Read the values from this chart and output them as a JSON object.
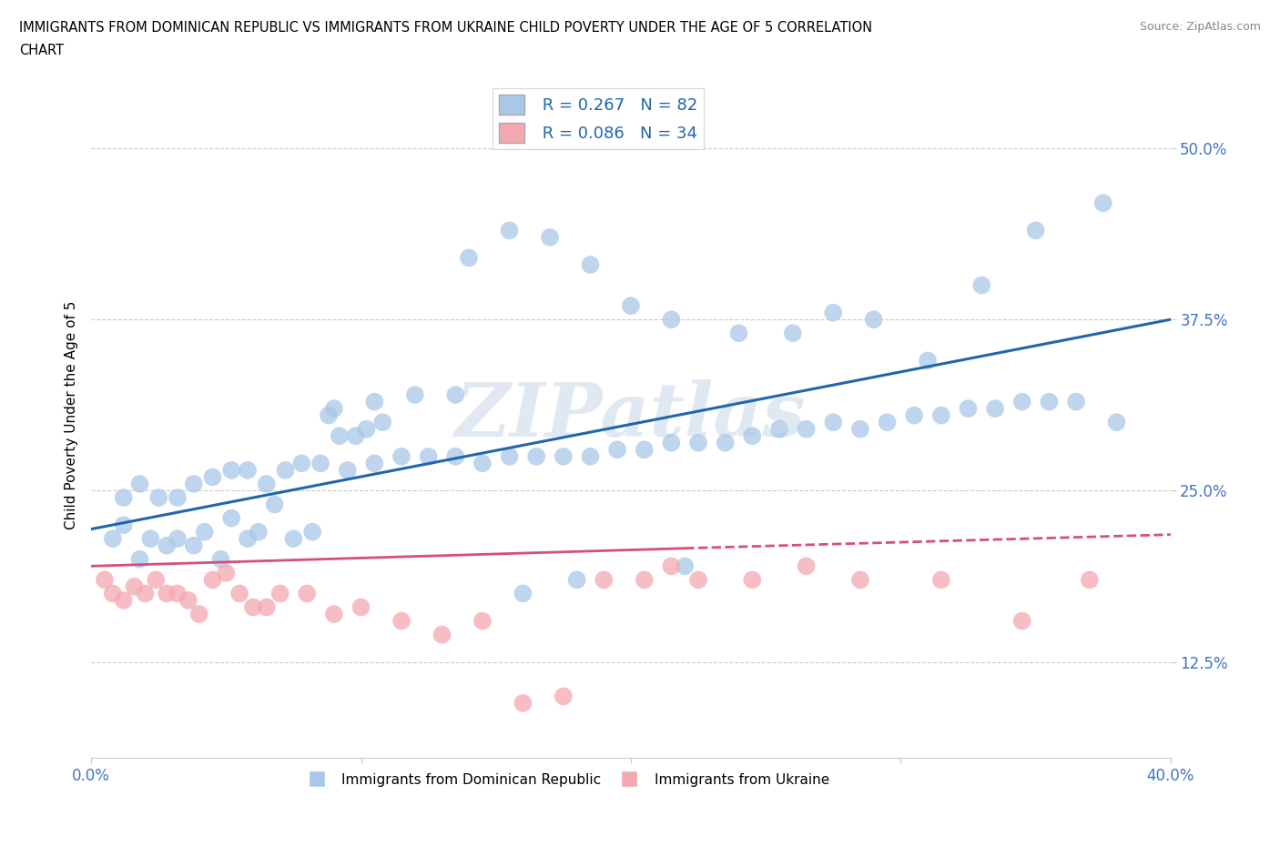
{
  "title_line1": "IMMIGRANTS FROM DOMINICAN REPUBLIC VS IMMIGRANTS FROM UKRAINE CHILD POVERTY UNDER THE AGE OF 5 CORRELATION",
  "title_line2": "CHART",
  "source": "Source: ZipAtlas.com",
  "ylabel": "Child Poverty Under the Age of 5",
  "xlim": [
    0.0,
    0.4
  ],
  "ylim": [
    0.055,
    0.555
  ],
  "yticks": [
    0.125,
    0.25,
    0.375,
    0.5
  ],
  "ytick_labels": [
    "12.5%",
    "25.0%",
    "37.5%",
    "50.0%"
  ],
  "xticks": [
    0.0,
    0.1,
    0.2,
    0.3,
    0.4
  ],
  "xtick_labels": [
    "0.0%",
    "",
    "",
    "",
    "40.0%"
  ],
  "legend_label1": "Immigrants from Dominican Republic",
  "legend_label2": "Immigrants from Ukraine",
  "R1": 0.267,
  "N1": 82,
  "R2": 0.086,
  "N2": 34,
  "color1": "#a8c8e8",
  "color2": "#f4a8b0",
  "line_color1": "#2166ac",
  "line_color2": "#d44f7a",
  "tick_color": "#4472c4",
  "watermark": "ZIPatlas",
  "blue_scatter_x": [
    0.008,
    0.012,
    0.018,
    0.022,
    0.028,
    0.032,
    0.038,
    0.042,
    0.048,
    0.052,
    0.058,
    0.062,
    0.068,
    0.075,
    0.082,
    0.088,
    0.092,
    0.098,
    0.102,
    0.108,
    0.012,
    0.018,
    0.025,
    0.032,
    0.038,
    0.045,
    0.052,
    0.058,
    0.065,
    0.072,
    0.078,
    0.085,
    0.095,
    0.105,
    0.115,
    0.125,
    0.135,
    0.145,
    0.155,
    0.165,
    0.175,
    0.185,
    0.195,
    0.205,
    0.215,
    0.225,
    0.235,
    0.245,
    0.255,
    0.265,
    0.275,
    0.285,
    0.295,
    0.305,
    0.315,
    0.325,
    0.335,
    0.345,
    0.355,
    0.365,
    0.14,
    0.155,
    0.17,
    0.185,
    0.2,
    0.215,
    0.24,
    0.26,
    0.275,
    0.29,
    0.31,
    0.33,
    0.35,
    0.375,
    0.09,
    0.105,
    0.12,
    0.135,
    0.16,
    0.18,
    0.22,
    0.38
  ],
  "blue_scatter_y": [
    0.215,
    0.225,
    0.2,
    0.215,
    0.21,
    0.215,
    0.21,
    0.22,
    0.2,
    0.23,
    0.215,
    0.22,
    0.24,
    0.215,
    0.22,
    0.305,
    0.29,
    0.29,
    0.295,
    0.3,
    0.245,
    0.255,
    0.245,
    0.245,
    0.255,
    0.26,
    0.265,
    0.265,
    0.255,
    0.265,
    0.27,
    0.27,
    0.265,
    0.27,
    0.275,
    0.275,
    0.275,
    0.27,
    0.275,
    0.275,
    0.275,
    0.275,
    0.28,
    0.28,
    0.285,
    0.285,
    0.285,
    0.29,
    0.295,
    0.295,
    0.3,
    0.295,
    0.3,
    0.305,
    0.305,
    0.31,
    0.31,
    0.315,
    0.315,
    0.315,
    0.42,
    0.44,
    0.435,
    0.415,
    0.385,
    0.375,
    0.365,
    0.365,
    0.38,
    0.375,
    0.345,
    0.4,
    0.44,
    0.46,
    0.31,
    0.315,
    0.32,
    0.32,
    0.175,
    0.185,
    0.195,
    0.3
  ],
  "pink_scatter_x": [
    0.005,
    0.008,
    0.012,
    0.016,
    0.02,
    0.024,
    0.028,
    0.032,
    0.036,
    0.04,
    0.045,
    0.05,
    0.055,
    0.06,
    0.065,
    0.07,
    0.08,
    0.09,
    0.1,
    0.115,
    0.13,
    0.145,
    0.16,
    0.175,
    0.19,
    0.205,
    0.215,
    0.225,
    0.245,
    0.265,
    0.285,
    0.315,
    0.345,
    0.37
  ],
  "pink_scatter_y": [
    0.185,
    0.175,
    0.17,
    0.18,
    0.175,
    0.185,
    0.175,
    0.175,
    0.17,
    0.16,
    0.185,
    0.19,
    0.175,
    0.165,
    0.165,
    0.175,
    0.175,
    0.16,
    0.165,
    0.155,
    0.145,
    0.155,
    0.095,
    0.1,
    0.185,
    0.185,
    0.195,
    0.185,
    0.185,
    0.195,
    0.185,
    0.185,
    0.155,
    0.185
  ]
}
